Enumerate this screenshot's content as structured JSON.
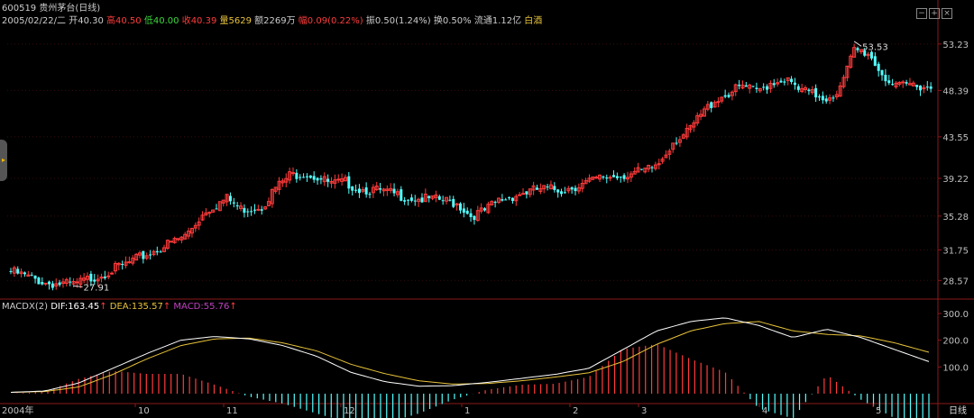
{
  "stock": {
    "code": "600519",
    "name": "贵州茅台(日线)",
    "date": "2005/02/22/二",
    "open_label": "开",
    "open": "40.30",
    "high_label": "高",
    "high": "40.50",
    "low_label": "低",
    "low": "40.00",
    "close_label": "收",
    "close": "40.39",
    "vol_label": "量",
    "vol": "5629",
    "amount_label": "额",
    "amount": "2269万",
    "change_label": "幅",
    "change": "0.09(0.22%)",
    "amp_label": "振",
    "amp": "0.50(1.24%)",
    "turnover_label": "换",
    "turnover": "0.50%",
    "float_label": "流通",
    "float": "1.12亿",
    "tag": "白酒"
  },
  "macd_header": {
    "name": "MACDX(2)",
    "dif_label": "DIF:",
    "dif": "163.45",
    "dea_label": "DEA:",
    "dea": "135.57",
    "macd_label": "MACD:",
    "macd": "55.76"
  },
  "controls": {
    "minus": "−",
    "plus": "+",
    "close": "×",
    "period": "日线"
  },
  "colors": {
    "up": "#ff3b3b",
    "down": "#54ffff",
    "grid": "#8b1a1a",
    "dif": "#ffffff",
    "dea": "#e8c33a",
    "macd_label": "#c040c0",
    "axis_text": "#c0c0c0"
  },
  "chart_data": [
    {
      "type": "candlestick",
      "title": "",
      "ylim": [
        27,
        55
      ],
      "yticks": [
        "53.23",
        "48.39",
        "43.55",
        "39.22",
        "35.28",
        "31.75",
        "28.57"
      ],
      "high_marker": "53.53",
      "low_marker": "27.91",
      "series_points": [
        [
          0,
          29.5
        ],
        [
          10,
          28.3
        ],
        [
          18,
          28.1
        ],
        [
          26,
          29.2
        ],
        [
          34,
          30.4
        ],
        [
          42,
          31.8
        ],
        [
          50,
          33.2
        ],
        [
          56,
          35.9
        ],
        [
          62,
          37.1
        ],
        [
          66,
          36.0
        ],
        [
          72,
          36.3
        ],
        [
          76,
          38.2
        ],
        [
          80,
          39.5
        ],
        [
          84,
          39.8
        ],
        [
          88,
          39.3
        ],
        [
          92,
          38.6
        ],
        [
          96,
          38.8
        ],
        [
          100,
          38.1
        ],
        [
          104,
          38.0
        ],
        [
          108,
          37.7
        ],
        [
          112,
          37.4
        ],
        [
          116,
          37.1
        ],
        [
          120,
          37.0
        ],
        [
          124,
          36.9
        ],
        [
          128,
          36.6
        ],
        [
          132,
          35.3
        ],
        [
          136,
          35.8
        ],
        [
          140,
          36.9
        ],
        [
          146,
          37.6
        ],
        [
          152,
          38.1
        ],
        [
          158,
          38.0
        ],
        [
          164,
          38.6
        ],
        [
          170,
          39.3
        ],
        [
          176,
          39.6
        ],
        [
          182,
          39.9
        ],
        [
          186,
          40.8
        ],
        [
          190,
          43.1
        ],
        [
          194,
          43.9
        ],
        [
          198,
          45.8
        ],
        [
          202,
          47.4
        ],
        [
          206,
          48.1
        ],
        [
          210,
          48.8
        ],
        [
          214,
          48.2
        ],
        [
          218,
          49.2
        ],
        [
          222,
          49.6
        ],
        [
          226,
          48.4
        ],
        [
          230,
          48.0
        ],
        [
          234,
          47.6
        ],
        [
          238,
          48.5
        ],
        [
          242,
          52.6
        ],
        [
          246,
          52.3
        ],
        [
          250,
          50.1
        ],
        [
          254,
          48.6
        ],
        [
          258,
          49.0
        ],
        [
          262,
          48.9
        ],
        [
          264,
          48.6
        ]
      ]
    },
    {
      "type": "macd",
      "ylim": [
        0,
        310
      ],
      "yticks": [
        "300.0",
        "200.0",
        "100.0"
      ],
      "series": [
        {
          "name": "DIF",
          "values": [
            5,
            10,
            40,
            95,
            150,
            200,
            214,
            205,
            180,
            140,
            80,
            45,
            28,
            30,
            42,
            57,
            72,
            95,
            165,
            235,
            270,
            284,
            255,
            210,
            241,
            210,
            165,
            120
          ]
        },
        {
          "name": "DEA",
          "values": [
            5,
            8,
            25,
            72,
            130,
            180,
            205,
            208,
            190,
            160,
            110,
            75,
            48,
            36,
            38,
            48,
            62,
            78,
            120,
            185,
            235,
            262,
            270,
            235,
            222,
            216,
            190,
            155
          ]
        },
        {
          "name": "MACD",
          "values": [
            0,
            4,
            30,
            46,
            40,
            40,
            18,
            -6,
            -20,
            -40,
            -60,
            -60,
            -40,
            -12,
            8,
            18,
            20,
            34,
            90,
            100,
            70,
            44,
            -30,
            -50,
            38,
            -12,
            -50,
            -70
          ]
        }
      ]
    }
  ],
  "x_axis": {
    "year": "2004年",
    "months": [
      "10",
      "11",
      "12",
      "1",
      "2",
      "3",
      "4",
      "5"
    ]
  }
}
